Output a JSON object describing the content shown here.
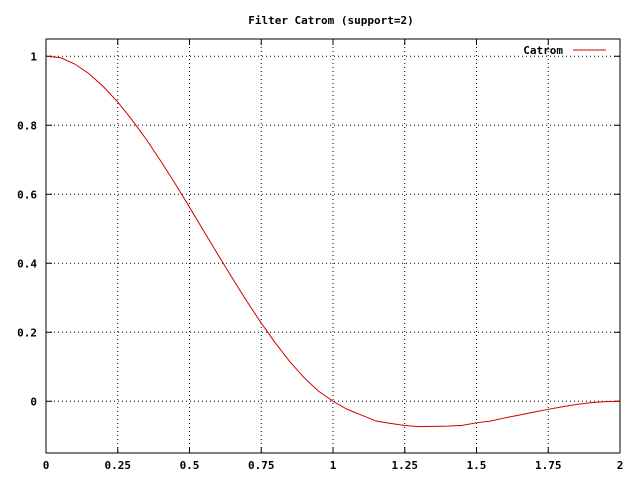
{
  "chart_data": {
    "type": "line",
    "title": "Filter Catrom (support=2)",
    "xlabel": "",
    "ylabel": "",
    "xlim": [
      0,
      2
    ],
    "ylim": [
      -0.15,
      1.05
    ],
    "xticks": [
      0,
      0.25,
      0.5,
      0.75,
      1,
      1.25,
      1.5,
      1.75,
      2
    ],
    "xtick_labels": [
      "0",
      "0.25",
      "0.5",
      "0.75",
      "1",
      "1.25",
      "1.5",
      "1.75",
      "2"
    ],
    "yticks": [
      0,
      0.2,
      0.4,
      0.6,
      0.8,
      1
    ],
    "ytick_labels": [
      "0",
      "0.2",
      "0.4",
      "0.6",
      "0.8",
      "1"
    ],
    "grid": true,
    "legend_position": "top-right",
    "series": [
      {
        "name": "Catrom",
        "color": "#cc0000",
        "x": [
          0,
          0.05,
          0.1,
          0.15,
          0.2,
          0.25,
          0.3,
          0.35,
          0.4,
          0.45,
          0.5,
          0.55,
          0.6,
          0.65,
          0.7,
          0.75,
          0.8,
          0.85,
          0.9,
          0.95,
          1,
          1.05,
          1.1,
          1.15,
          1.2,
          1.25,
          1.3,
          1.35,
          1.4,
          1.45,
          1.5,
          1.55,
          1.6,
          1.65,
          1.7,
          1.75,
          1.8,
          1.85,
          1.9,
          1.95,
          2
        ],
        "y": [
          1,
          0.996,
          0.9775,
          0.9494,
          0.912,
          0.8672,
          0.8155,
          0.7583,
          0.696,
          0.6308,
          0.5625,
          0.4928,
          0.424,
          0.3558,
          0.2895,
          0.2266,
          0.168,
          0.1143,
          0.0675,
          0.0289,
          0,
          -0.0236,
          -0.0405,
          -0.0574,
          -0.064,
          -0.0703,
          -0.0735,
          -0.0729,
          -0.072,
          -0.0698,
          -0.0625,
          -0.0574,
          -0.048,
          -0.0399,
          -0.0315,
          -0.0234,
          -0.016,
          -0.0092,
          -0.004,
          -0.001,
          0
        ]
      }
    ]
  }
}
